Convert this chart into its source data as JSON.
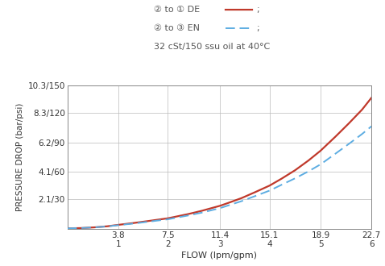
{
  "legend_line1_text": "② to ① DE",
  "legend_line2_text": "② to ③ EN",
  "subtitle": "32 cSt/150 ssu oil at 40°C",
  "xlabel": "FLOW (lpm/gpm)",
  "ylabel": "PRESSURE DROP (bar/psi)",
  "x_tick_positions": [
    3.8,
    7.5,
    11.4,
    15.1,
    18.9,
    22.7
  ],
  "x_tick_gpm": [
    1,
    2,
    3,
    4,
    5,
    6
  ],
  "y_tick_values": [
    2.1,
    4.1,
    6.2,
    8.3,
    10.3
  ],
  "y_tick_labels": [
    "2.1/30",
    "4.1/60",
    "6.2/90",
    "8.3/120",
    "10.3/150"
  ],
  "xlim": [
    0.0,
    22.7
  ],
  "ylim": [
    0.0,
    10.3
  ],
  "color_de": "#c0392b",
  "color_en": "#5dade2",
  "bg_color": "#ffffff",
  "grid_color": "#bbbbbb",
  "flow_lpm": [
    0.0,
    1.0,
    2.0,
    3.0,
    3.8,
    5.0,
    6.0,
    7.5,
    8.0,
    9.0,
    10.0,
    11.4,
    12.0,
    13.0,
    14.0,
    15.1,
    16.0,
    17.0,
    18.0,
    18.9,
    20.0,
    21.0,
    22.0,
    22.7
  ],
  "pressure_de": [
    0.03,
    0.05,
    0.1,
    0.18,
    0.28,
    0.42,
    0.55,
    0.75,
    0.85,
    1.05,
    1.28,
    1.65,
    1.85,
    2.2,
    2.62,
    3.1,
    3.6,
    4.2,
    4.9,
    5.6,
    6.6,
    7.55,
    8.55,
    9.4
  ],
  "pressure_en": [
    0.03,
    0.05,
    0.1,
    0.17,
    0.26,
    0.38,
    0.5,
    0.68,
    0.77,
    0.95,
    1.15,
    1.48,
    1.67,
    1.98,
    2.34,
    2.74,
    3.16,
    3.62,
    4.12,
    4.62,
    5.38,
    6.08,
    6.8,
    7.35
  ]
}
